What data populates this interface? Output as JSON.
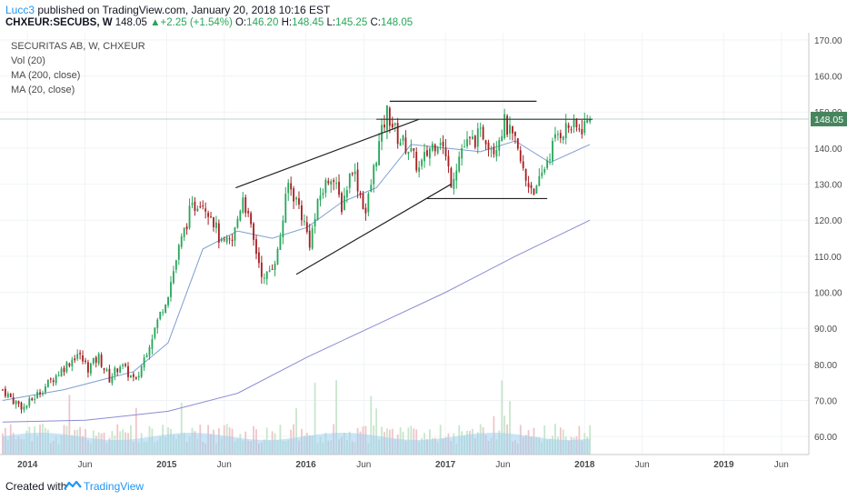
{
  "header": {
    "user": "Lucc3",
    "published_text": "published on TradingView.com, January 20, 2018 10:16 EST",
    "symbol": "CHXEUR:SECUBS, W",
    "last": "148.05",
    "change": "+2.25 (+1.54%)",
    "o_label": "O:",
    "o_value": "146.20",
    "h_label": "H:",
    "h_value": "148.45",
    "l_label": "L:",
    "l_value": "145.25",
    "c_label": "C:",
    "c_value": "148.05"
  },
  "legend": {
    "title": "SECURITAS AB, W, CHXEUR",
    "vol": "Vol (20)",
    "ma200": "MA (200, close)",
    "ma20": "MA (20, close)"
  },
  "footer": {
    "created_with": "Created with",
    "brand": "TradingView"
  },
  "colors": {
    "up": "#27a65a",
    "down": "#a61f23",
    "vol_up": "#c9e6cd",
    "vol_down": "#efc6c8",
    "ma200": "#8c8cd2",
    "ma20": "#7f9fd1",
    "vol_ma": "#9fd0ef",
    "price_tag": "#47855e"
  },
  "chart_data": {
    "type": "candlestick",
    "title": "SECURITAS AB, W, CHXEUR",
    "ylim": [
      55,
      172
    ],
    "y_ticks": [
      "170.00",
      "160.00",
      "150.00",
      "140.00",
      "130.00",
      "120.00",
      "110.00",
      "100.00",
      "90.00",
      "80.00",
      "70.00",
      "60.00"
    ],
    "y_tick_values": [
      170,
      160,
      150,
      140,
      130,
      120,
      110,
      100,
      90,
      80,
      70,
      60
    ],
    "x_tick_labels": [
      "2014",
      "Jun",
      "2015",
      "Jun",
      "2016",
      "Jun",
      "2017",
      "Jun",
      "2018",
      "Jun",
      "2019",
      "Jun"
    ],
    "x_tick_dates": [
      "2014-01",
      "2014-06",
      "2015-01",
      "2015-06",
      "2016-01",
      "2016-06",
      "2017-01",
      "2017-06",
      "2018-01",
      "2018-06",
      "2019-01",
      "2019-06"
    ],
    "last_price_label": "148.05",
    "last_price": 148.05,
    "price_path": [
      [
        "2013-10-28",
        73
      ],
      [
        "2013-11-25",
        70
      ],
      [
        "2013-12-23",
        68
      ],
      [
        "2014-01-20",
        71
      ],
      [
        "2014-02-17",
        74
      ],
      [
        "2014-03-17",
        77
      ],
      [
        "2014-04-14",
        80
      ],
      [
        "2014-05-12",
        83
      ],
      [
        "2014-06-09",
        79
      ],
      [
        "2014-07-07",
        82
      ],
      [
        "2014-08-04",
        76
      ],
      [
        "2014-09-01",
        80
      ],
      [
        "2014-10-13",
        75
      ],
      [
        "2014-11-10",
        84
      ],
      [
        "2014-12-08",
        92
      ],
      [
        "2015-01-05",
        100
      ],
      [
        "2015-02-02",
        112
      ],
      [
        "2015-03-02",
        122
      ],
      [
        "2015-03-30",
        126
      ],
      [
        "2015-04-27",
        122
      ],
      [
        "2015-05-25",
        113
      ],
      [
        "2015-06-22",
        114
      ],
      [
        "2015-07-20",
        127
      ],
      [
        "2015-08-17",
        114
      ],
      [
        "2015-09-14",
        103
      ],
      [
        "2015-10-19",
        111
      ],
      [
        "2015-11-16",
        130
      ],
      [
        "2015-12-14",
        124
      ],
      [
        "2016-01-11",
        114
      ],
      [
        "2016-02-08",
        127
      ],
      [
        "2016-03-07",
        133
      ],
      [
        "2016-04-04",
        124
      ],
      [
        "2016-05-02",
        135
      ],
      [
        "2016-06-06",
        122
      ],
      [
        "2016-07-04",
        138
      ],
      [
        "2016-08-01",
        150
      ],
      [
        "2016-08-29",
        143
      ],
      [
        "2016-09-26",
        140
      ],
      [
        "2016-10-24",
        134
      ],
      [
        "2016-11-21",
        140
      ],
      [
        "2016-12-19",
        143
      ],
      [
        "2017-01-16",
        131
      ],
      [
        "2017-02-13",
        140
      ],
      [
        "2017-03-13",
        142
      ],
      [
        "2017-04-10",
        144
      ],
      [
        "2017-05-08",
        140
      ],
      [
        "2017-06-05",
        147
      ],
      [
        "2017-07-03",
        141
      ],
      [
        "2017-07-31",
        131
      ],
      [
        "2017-08-28",
        128
      ],
      [
        "2017-09-25",
        137
      ],
      [
        "2017-10-23",
        144
      ],
      [
        "2017-11-20",
        146
      ],
      [
        "2017-12-18",
        145
      ],
      [
        "2018-01-15",
        148.05
      ]
    ],
    "ma200": [
      [
        "2013-10-28",
        64
      ],
      [
        "2014-06-02",
        64.5
      ],
      [
        "2015-01-05",
        67
      ],
      [
        "2015-07-06",
        72
      ],
      [
        "2016-01-04",
        82
      ],
      [
        "2016-07-04",
        91
      ],
      [
        "2017-01-02",
        100
      ],
      [
        "2017-07-03",
        110
      ],
      [
        "2018-01-15",
        120
      ]
    ],
    "ma20": [
      [
        "2013-10-28",
        70
      ],
      [
        "2014-04-07",
        73
      ],
      [
        "2014-10-06",
        78
      ],
      [
        "2015-01-05",
        86
      ],
      [
        "2015-04-06",
        112
      ],
      [
        "2015-07-06",
        117
      ],
      [
        "2015-10-05",
        115
      ],
      [
        "2016-01-04",
        118
      ],
      [
        "2016-04-04",
        125
      ],
      [
        "2016-07-04",
        129
      ],
      [
        "2016-10-03",
        141
      ],
      [
        "2017-01-02",
        140
      ],
      [
        "2017-04-03",
        139
      ],
      [
        "2017-07-03",
        142
      ],
      [
        "2017-10-02",
        136
      ],
      [
        "2018-01-15",
        141
      ]
    ],
    "trendlines": [
      {
        "from": [
          "2015-07-01",
          129
        ],
        "to": [
          "2016-10-24",
          148
        ]
      },
      {
        "from": [
          "2015-12-07",
          105
        ],
        "to": [
          "2017-01-16",
          130
        ]
      },
      {
        "from": [
          "2016-08-08",
          153
        ],
        "to": [
          "2017-08-28",
          153
        ]
      },
      {
        "from": [
          "2016-07-04",
          148
        ],
        "to": [
          "2018-01-22",
          148
        ]
      },
      {
        "from": [
          "2016-11-14",
          126
        ],
        "to": [
          "2017-09-25",
          126
        ]
      }
    ],
    "volume_axis_note": "Vol (20)"
  }
}
